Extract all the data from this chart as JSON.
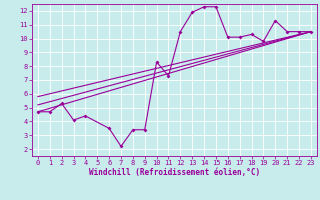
{
  "xlabel": "Windchill (Refroidissement éolien,°C)",
  "xlim": [
    -0.5,
    23.5
  ],
  "ylim": [
    1.5,
    12.5
  ],
  "yticks": [
    2,
    3,
    4,
    5,
    6,
    7,
    8,
    9,
    10,
    11,
    12
  ],
  "xticks": [
    0,
    1,
    2,
    3,
    4,
    5,
    6,
    7,
    8,
    9,
    10,
    11,
    12,
    13,
    14,
    15,
    16,
    17,
    18,
    19,
    20,
    21,
    22,
    23
  ],
  "bg_color": "#c8ecec",
  "line_color": "#990099",
  "grid_color": "#aadddd",
  "data_line": {
    "x": [
      0,
      1,
      2,
      3,
      4,
      6,
      7,
      8,
      9,
      10,
      11,
      12,
      13,
      14,
      15,
      16,
      17,
      18,
      19,
      20,
      21,
      22,
      23
    ],
    "y": [
      4.7,
      4.7,
      5.3,
      4.1,
      4.4,
      3.5,
      2.2,
      3.4,
      3.4,
      8.3,
      7.3,
      10.5,
      11.9,
      12.3,
      12.3,
      10.1,
      10.1,
      10.3,
      9.8,
      11.3,
      10.5,
      10.5,
      10.5
    ]
  },
  "trend_lines": [
    {
      "x": [
        0,
        23
      ],
      "y": [
        4.7,
        10.5
      ]
    },
    {
      "x": [
        0,
        23
      ],
      "y": [
        5.2,
        10.5
      ]
    },
    {
      "x": [
        0,
        23
      ],
      "y": [
        5.8,
        10.5
      ]
    }
  ]
}
